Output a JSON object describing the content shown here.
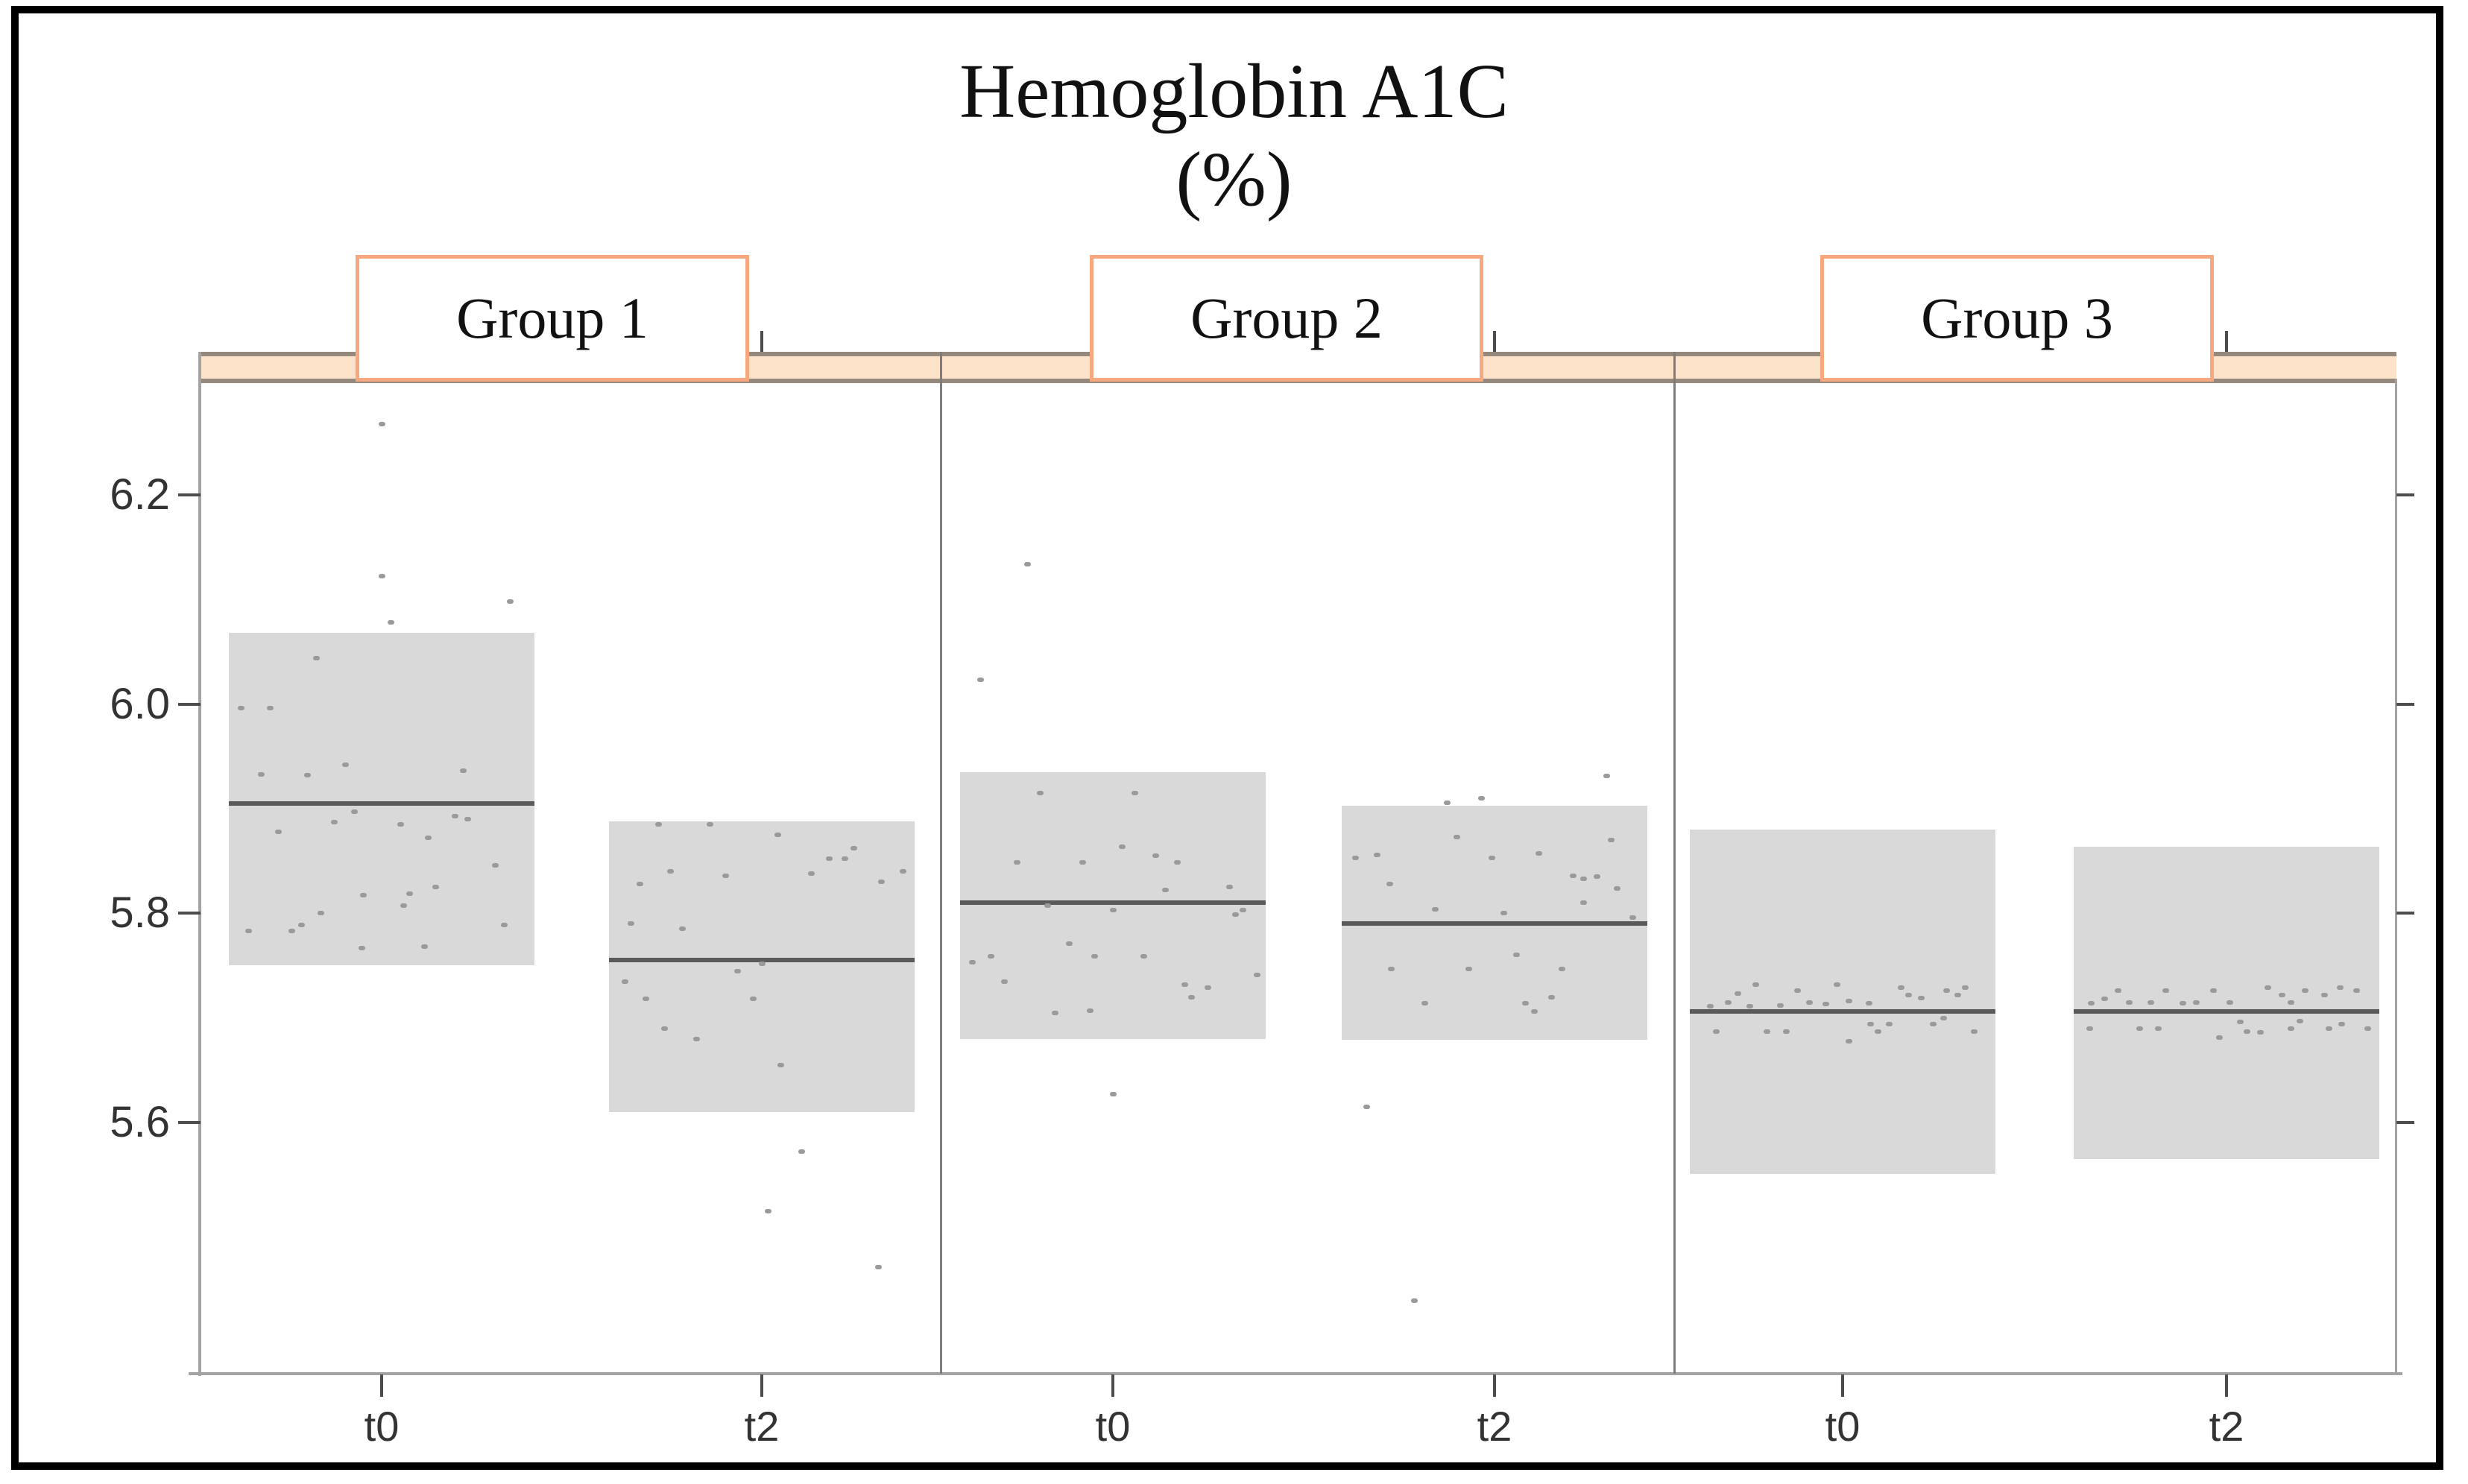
{
  "figure": {
    "title": "Hemoglobin A1C",
    "subtitle": "(%)"
  },
  "colors": {
    "box_fill": "#d9d9d9",
    "mean_line": "#5a5a5a",
    "point": "#9a9a9a",
    "strip_fill": "#fbe2c9",
    "strip_border": "#94897c",
    "facet_box_border": "#f7a87f",
    "axis": "#a3a3a3",
    "divider": "#7d7d7d",
    "tick": "#4d4d4d",
    "text": "#111111"
  },
  "chart_data": {
    "type": "box",
    "variant": "mean-sd-box-with-jitter-points",
    "title": "Hemoglobin A1C",
    "ylabel": "(%)",
    "grid": "off",
    "facet_labels": [
      "Group 1",
      "Group 2",
      "Group 3"
    ],
    "categories": [
      "t0",
      "t2"
    ],
    "y_axis": {
      "tick_labels": [
        "6.2",
        "6.0",
        "5.8",
        "5.6"
      ],
      "tick_values": [
        6.2,
        6.0,
        5.8,
        5.6
      ],
      "range": [
        5.36,
        6.31
      ]
    },
    "facets": [
      {
        "label": "Group 1",
        "boxes": [
          {
            "time": "t0",
            "low": 5.75,
            "mean": 5.905,
            "high": 6.068,
            "points": [
              [
                0.5,
                6.268
              ],
              [
                0.5,
                6.122
              ],
              [
                0.92,
                6.098
              ],
              [
                0.53,
                6.078
              ],
              [
                0.285,
                6.044
              ],
              [
                0.04,
                5.996
              ],
              [
                0.135,
                5.996
              ],
              [
                0.105,
                5.933
              ],
              [
                0.255,
                5.932
              ],
              [
                0.38,
                5.942
              ],
              [
                0.765,
                5.936
              ],
              [
                0.41,
                5.897
              ],
              [
                0.345,
                5.887
              ],
              [
                0.16,
                5.878
              ],
              [
                0.56,
                5.885
              ],
              [
                0.74,
                5.893
              ],
              [
                0.78,
                5.89
              ],
              [
                0.65,
                5.872
              ],
              [
                0.87,
                5.846
              ],
              [
                0.675,
                5.825
              ],
              [
                0.59,
                5.819
              ],
              [
                0.44,
                5.817
              ],
              [
                0.57,
                5.807
              ],
              [
                0.064,
                5.783
              ],
              [
                0.206,
                5.783
              ],
              [
                0.236,
                5.789
              ],
              [
                0.64,
                5.768
              ],
              [
                0.9,
                5.789
              ],
              [
                0.435,
                5.767
              ],
              [
                0.3,
                5.8
              ]
            ]
          },
          {
            "time": "t2",
            "low": 5.61,
            "mean": 5.755,
            "high": 5.888,
            "points": [
              [
                0.16,
                5.885
              ],
              [
                0.33,
                5.885
              ],
              [
                0.55,
                5.875
              ],
              [
                0.8,
                5.862
              ],
              [
                0.72,
                5.852
              ],
              [
                0.77,
                5.852
              ],
              [
                0.96,
                5.84
              ],
              [
                0.2,
                5.84
              ],
              [
                0.38,
                5.836
              ],
              [
                0.66,
                5.838
              ],
              [
                0.1,
                5.828
              ],
              [
                0.89,
                5.83
              ],
              [
                0.07,
                5.79
              ],
              [
                0.24,
                5.785
              ],
              [
                0.5,
                5.752
              ],
              [
                0.42,
                5.745
              ],
              [
                0.05,
                5.735
              ],
              [
                0.12,
                5.718
              ],
              [
                0.47,
                5.718
              ],
              [
                0.285,
                5.68
              ],
              [
                0.56,
                5.655
              ],
              [
                0.18,
                5.69
              ],
              [
                0.63,
                5.572
              ],
              [
                0.52,
                5.515
              ],
              [
                0.88,
                5.462
              ]
            ]
          }
        ]
      },
      {
        "label": "Group 2",
        "boxes": [
          {
            "time": "t0",
            "low": 5.68,
            "mean": 5.81,
            "high": 5.935,
            "points": [
              [
                0.22,
                6.134
              ],
              [
                0.065,
                6.023
              ],
              [
                0.26,
                5.915
              ],
              [
                0.57,
                5.915
              ],
              [
                0.53,
                5.864
              ],
              [
                0.185,
                5.849
              ],
              [
                0.4,
                5.849
              ],
              [
                0.64,
                5.855
              ],
              [
                0.71,
                5.849
              ],
              [
                0.67,
                5.822
              ],
              [
                0.88,
                5.825
              ],
              [
                0.9,
                5.799
              ],
              [
                0.285,
                5.807
              ],
              [
                0.5,
                5.803
              ],
              [
                0.925,
                5.803
              ],
              [
                0.355,
                5.771
              ],
              [
                0.04,
                5.753
              ],
              [
                0.1,
                5.759
              ],
              [
                0.44,
                5.759
              ],
              [
                0.6,
                5.759
              ],
              [
                0.145,
                5.735
              ],
              [
                0.31,
                5.705
              ],
              [
                0.425,
                5.707
              ],
              [
                0.735,
                5.732
              ],
              [
                0.755,
                5.72
              ],
              [
                0.81,
                5.729
              ],
              [
                0.5,
                5.627
              ],
              [
                0.97,
                5.741
              ]
            ]
          },
          {
            "time": "t2",
            "low": 5.679,
            "mean": 5.79,
            "high": 5.903,
            "points": [
              [
                0.865,
                5.931
              ],
              [
                0.345,
                5.906
              ],
              [
                0.455,
                5.91
              ],
              [
                0.375,
                5.873
              ],
              [
                0.045,
                5.853
              ],
              [
                0.115,
                5.856
              ],
              [
                0.49,
                5.853
              ],
              [
                0.645,
                5.857
              ],
              [
                0.155,
                5.828
              ],
              [
                0.755,
                5.836
              ],
              [
                0.79,
                5.833
              ],
              [
                0.835,
                5.835
              ],
              [
                0.9,
                5.824
              ],
              [
                0.305,
                5.804
              ],
              [
                0.53,
                5.8
              ],
              [
                0.79,
                5.81
              ],
              [
                0.16,
                5.747
              ],
              [
                0.57,
                5.76
              ],
              [
                0.72,
                5.747
              ],
              [
                0.415,
                5.747
              ],
              [
                0.27,
                5.714
              ],
              [
                0.6,
                5.714
              ],
              [
                0.685,
                5.72
              ],
              [
                0.63,
                5.706
              ],
              [
                0.08,
                5.615
              ],
              [
                0.237,
                5.43
              ],
              [
                0.95,
                5.796
              ],
              [
                0.88,
                5.87
              ]
            ]
          }
        ]
      },
      {
        "label": "Group 3",
        "boxes": [
          {
            "time": "t0",
            "low": 5.551,
            "mean": 5.706,
            "high": 5.88,
            "points": [
              [
                0.215,
                5.732
              ],
              [
                0.065,
                5.711
              ],
              [
                0.125,
                5.715
              ],
              [
                0.155,
                5.723
              ],
              [
                0.195,
                5.711
              ],
              [
                0.295,
                5.712
              ],
              [
                0.35,
                5.726
              ],
              [
                0.39,
                5.715
              ],
              [
                0.445,
                5.713
              ],
              [
                0.48,
                5.732
              ],
              [
                0.52,
                5.716
              ],
              [
                0.585,
                5.714
              ],
              [
                0.69,
                5.729
              ],
              [
                0.715,
                5.722
              ],
              [
                0.755,
                5.719
              ],
              [
                0.84,
                5.726
              ],
              [
                0.875,
                5.722
              ],
              [
                0.9,
                5.729
              ],
              [
                0.085,
                5.687
              ],
              [
                0.25,
                5.687
              ],
              [
                0.315,
                5.687
              ],
              [
                0.52,
                5.678
              ],
              [
                0.59,
                5.694
              ],
              [
                0.615,
                5.687
              ],
              [
                0.65,
                5.694
              ],
              [
                0.795,
                5.694
              ],
              [
                0.83,
                5.7
              ],
              [
                0.93,
                5.687
              ]
            ]
          },
          {
            "time": "t2",
            "low": 5.565,
            "mean": 5.706,
            "high": 5.864,
            "points": [
              [
                0.055,
                5.714
              ],
              [
                0.1,
                5.718
              ],
              [
                0.145,
                5.726
              ],
              [
                0.18,
                5.715
              ],
              [
                0.25,
                5.715
              ],
              [
                0.3,
                5.726
              ],
              [
                0.355,
                5.714
              ],
              [
                0.4,
                5.715
              ],
              [
                0.455,
                5.726
              ],
              [
                0.51,
                5.715
              ],
              [
                0.635,
                5.729
              ],
              [
                0.68,
                5.722
              ],
              [
                0.71,
                5.715
              ],
              [
                0.755,
                5.726
              ],
              [
                0.82,
                5.722
              ],
              [
                0.87,
                5.729
              ],
              [
                0.925,
                5.726
              ],
              [
                0.05,
                5.69
              ],
              [
                0.215,
                5.69
              ],
              [
                0.275,
                5.69
              ],
              [
                0.475,
                5.681
              ],
              [
                0.545,
                5.696
              ],
              [
                0.565,
                5.687
              ],
              [
                0.61,
                5.686
              ],
              [
                0.71,
                5.69
              ],
              [
                0.74,
                5.697
              ],
              [
                0.835,
                5.69
              ],
              [
                0.875,
                5.694
              ],
              [
                0.96,
                5.69
              ]
            ]
          }
        ]
      }
    ]
  }
}
